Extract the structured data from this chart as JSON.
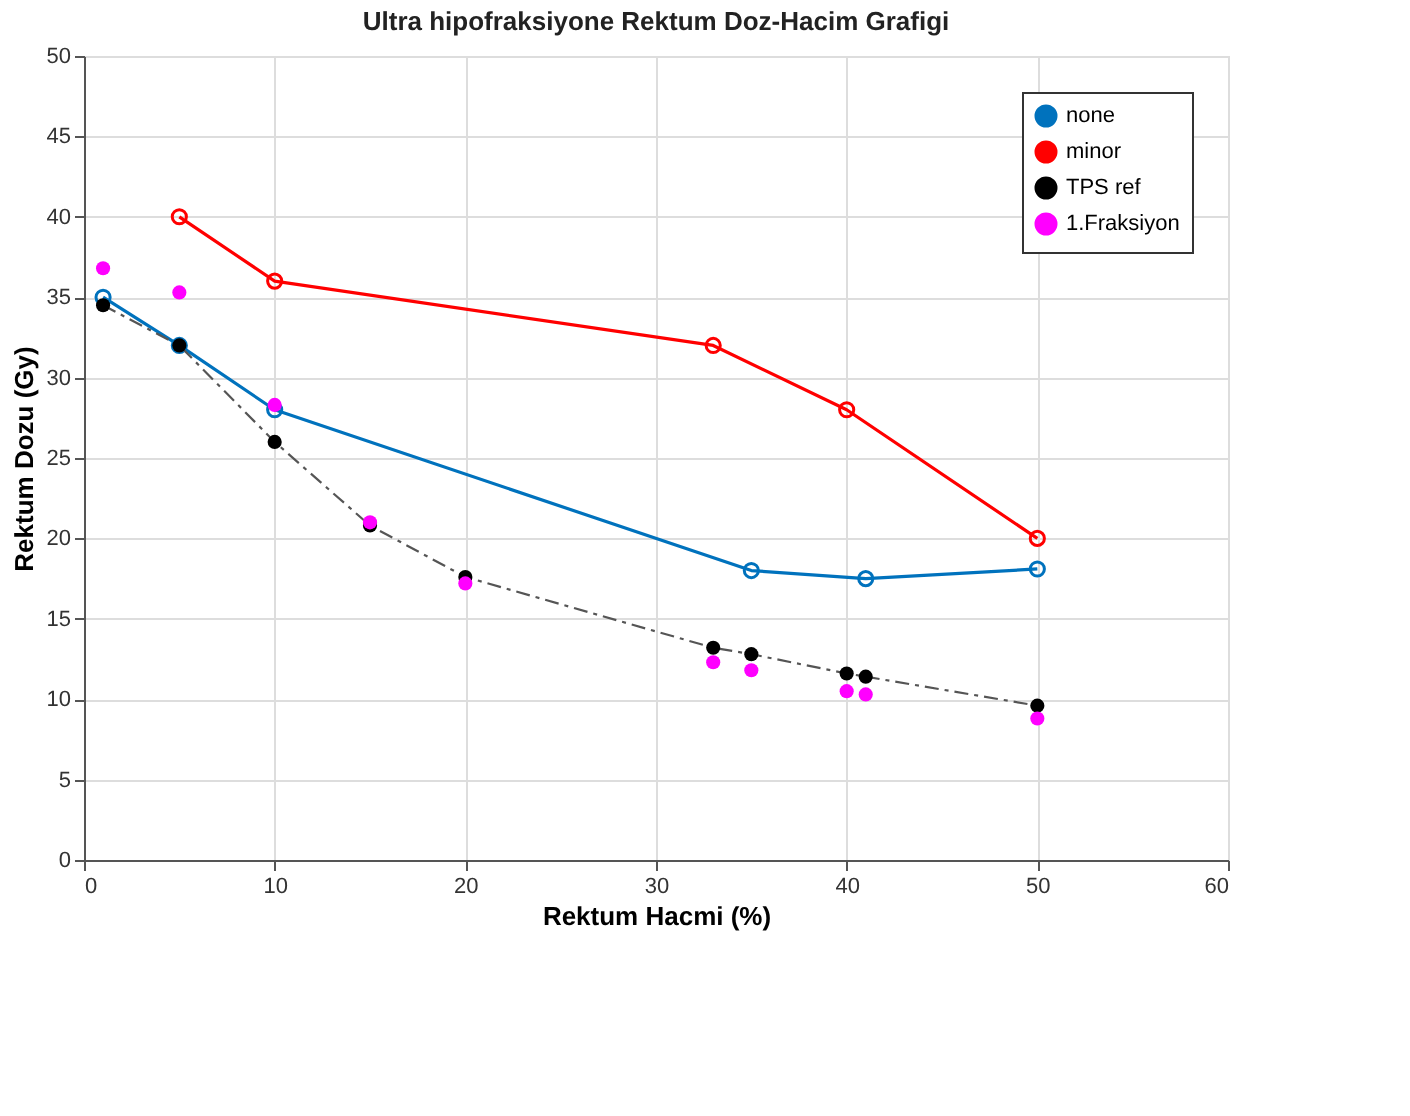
{
  "chart_data": {
    "type": "line",
    "title": "Ultra hipofraksiyone Rektum Doz-Hacim Grafigi",
    "xlabel": "Rektum Hacmi (%)",
    "ylabel": "Rektum Dozu (Gy)",
    "xlim": [
      0,
      60
    ],
    "xticks": [
      0,
      10,
      20,
      30,
      40,
      50,
      60
    ],
    "ylim": [
      0,
      50
    ],
    "yticks": [
      0,
      5,
      10,
      15,
      20,
      25,
      30,
      35,
      40,
      45,
      50
    ],
    "grid": true,
    "legend": "top right",
    "series": [
      {
        "name": "none",
        "color": "#0072bd",
        "marker": "circle",
        "line_style": "solid",
        "x": [
          1,
          5,
          10,
          35,
          41,
          50
        ],
        "values": [
          35,
          32,
          28,
          18,
          17.5,
          18.1
        ]
      },
      {
        "name": "minor",
        "color": "#ff0000",
        "marker": "circle",
        "line_style": "solid",
        "x": [
          5,
          10,
          33,
          40,
          50
        ],
        "values": [
          40,
          36,
          32,
          28,
          20
        ]
      },
      {
        "name": "TPS ref",
        "color": "#000000",
        "marker": "circle",
        "line_style": "dashdot",
        "x": [
          1,
          5,
          10,
          15,
          20,
          33,
          35,
          40,
          41,
          50
        ],
        "values": [
          34.5,
          32,
          26,
          20.8,
          17.6,
          13.2,
          12.8,
          11.6,
          11.4,
          9.6
        ]
      },
      {
        "name": "1.Fraksiyon",
        "type": "scatter",
        "color": "#ff00ff",
        "marker": "circle",
        "x": [
          1,
          5,
          10,
          15,
          20,
          33,
          35,
          40,
          41,
          50
        ],
        "values": [
          36.8,
          35.3,
          28.3,
          21,
          17.2,
          12.3,
          11.8,
          10.5,
          10.3,
          8.8
        ]
      }
    ]
  }
}
